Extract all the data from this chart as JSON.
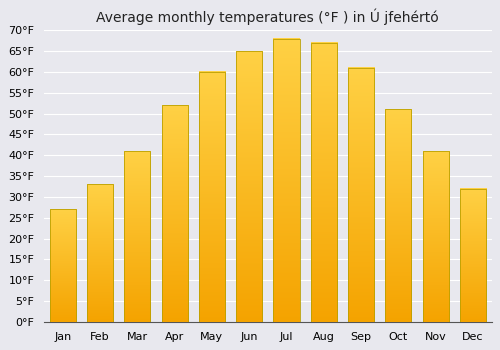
{
  "title": "Average monthly temperatures (°F ) in Ú jfehértó",
  "months": [
    "Jan",
    "Feb",
    "Mar",
    "Apr",
    "May",
    "Jun",
    "Jul",
    "Aug",
    "Sep",
    "Oct",
    "Nov",
    "Dec"
  ],
  "values": [
    27,
    33,
    41,
    52,
    60,
    65,
    68,
    67,
    61,
    51,
    41,
    32
  ],
  "ylim": [
    0,
    70
  ],
  "yticks": [
    0,
    5,
    10,
    15,
    20,
    25,
    30,
    35,
    40,
    45,
    50,
    55,
    60,
    65,
    70
  ],
  "ytick_labels": [
    "0°F",
    "5°F",
    "10°F",
    "15°F",
    "20°F",
    "25°F",
    "30°F",
    "35°F",
    "40°F",
    "45°F",
    "50°F",
    "55°F",
    "60°F",
    "65°F",
    "70°F"
  ],
  "bar_color_top": "#FFCC44",
  "bar_color_bottom": "#F5A200",
  "bar_edge_color": "#BBA000",
  "background_color": "#e8e8ee",
  "plot_bg_color": "#e8e8ee",
  "grid_color": "#ffffff",
  "title_fontsize": 10,
  "tick_fontsize": 8
}
